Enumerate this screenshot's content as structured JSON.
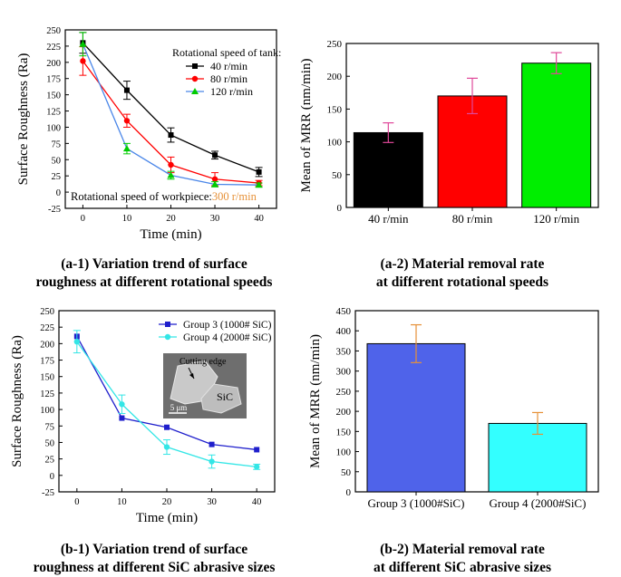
{
  "chart_data": [
    {
      "id": "a1",
      "type": "line",
      "title": "",
      "xlabel": "Time (min)",
      "ylabel": "Surface Roughness (Ra)",
      "xlim": [
        -4,
        44
      ],
      "ylim": [
        -25,
        250
      ],
      "xticks": [
        0,
        10,
        20,
        30,
        40
      ],
      "yticks": [
        -25,
        0,
        25,
        50,
        75,
        100,
        125,
        150,
        175,
        200,
        225,
        250
      ],
      "x": [
        0,
        10,
        20,
        30,
        40
      ],
      "legend_title": "Rotational speed of tank:",
      "series": [
        {
          "name": "40 r/min",
          "color": "#000000",
          "marker": "square",
          "values": [
            230,
            157,
            88,
            57,
            31
          ],
          "errors": [
            16,
            14,
            11,
            6,
            7
          ]
        },
        {
          "name": "80 r/min",
          "color": "#ff0000",
          "marker": "circle",
          "values": [
            202,
            110,
            42,
            20,
            14
          ],
          "errors": [
            22,
            10,
            12,
            10,
            4
          ]
        },
        {
          "name": "120 r/min",
          "color": "#00cc00",
          "marker": "triangle",
          "line_color": "#4a86e8",
          "values": [
            228,
            67,
            26,
            12,
            11
          ],
          "errors": [
            18,
            8,
            6,
            4,
            3
          ]
        }
      ],
      "annotation_prefix": "Rotational speed of workpiece:",
      "annotation_value": "300 r/min",
      "annotation_value_color": "#e69138"
    },
    {
      "id": "a2",
      "type": "bar",
      "ylabel": "Mean of MRR (nm/min)",
      "ylim": [
        0,
        250
      ],
      "yticks": [
        0,
        50,
        100,
        150,
        200,
        250
      ],
      "categories": [
        "40 r/min",
        "80 r/min",
        "120 r/min"
      ],
      "values": [
        114,
        170,
        220
      ],
      "errors": [
        15,
        27,
        16
      ],
      "colors": [
        "#000000",
        "#ff0000",
        "#00ee00"
      ],
      "error_color": "#e0489a"
    },
    {
      "id": "b1",
      "type": "line",
      "xlabel": "Time (min)",
      "ylabel": "Surface Roughness (Ra)",
      "xlim": [
        -4,
        44
      ],
      "ylim": [
        -25,
        250
      ],
      "xticks": [
        0,
        10,
        20,
        30,
        40
      ],
      "yticks": [
        -25,
        0,
        25,
        50,
        75,
        100,
        125,
        150,
        175,
        200,
        225,
        250
      ],
      "x": [
        0,
        10,
        20,
        30,
        40
      ],
      "series": [
        {
          "name": "Group 3 (1000# SiC)",
          "color": "#1f1fcc",
          "marker": "square",
          "values": [
            211,
            87,
            73,
            47,
            39
          ],
          "errors": [
            0,
            0,
            0,
            0,
            0
          ]
        },
        {
          "name": "Group 4 (2000# SiC)",
          "color": "#33e6e6",
          "marker": "circle",
          "values": [
            203,
            108,
            43,
            21,
            13
          ],
          "errors": [
            17,
            14,
            11,
            10,
            4
          ]
        }
      ],
      "inset_labels": [
        "Cutting edge",
        "SiC",
        "5 μm"
      ]
    },
    {
      "id": "b2",
      "type": "bar",
      "ylabel": "Mean of MRR (nm/min)",
      "ylim": [
        0,
        450
      ],
      "yticks": [
        0,
        50,
        100,
        150,
        200,
        250,
        300,
        350,
        400,
        450
      ],
      "categories": [
        "Group 3 (1000#SiC)",
        "Group 4 (2000#SiC)"
      ],
      "values": [
        368,
        170
      ],
      "errors": [
        47,
        27
      ],
      "colors": [
        "#4f63ea",
        "#33ffff"
      ],
      "error_color": "#e69138"
    }
  ],
  "captions": {
    "a1": {
      "line1": "(a-1) Variation trend of surface",
      "line2": "roughness at different rotational speeds"
    },
    "a2": {
      "line1": "(a-2) Material removal rate",
      "line2": "at different rotational speeds"
    },
    "b1": {
      "line1": "(b-1) Variation trend of surface",
      "line2": "roughness at different SiC abrasive sizes"
    },
    "b2": {
      "line1": "(b-2) Material removal rate",
      "line2": "at different SiC abrasive sizes"
    }
  }
}
